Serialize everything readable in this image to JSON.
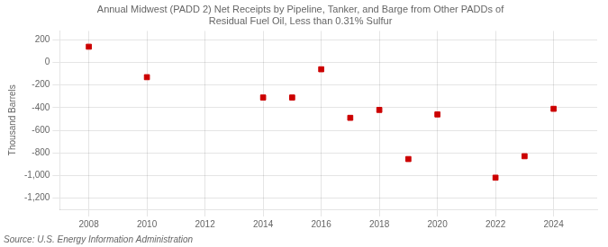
{
  "chart_data": {
    "type": "scatter",
    "title": "Annual Midwest (PADD 2) Net Receipts by Pipeline, Tanker, and Barge from Other PADDs of\nResidual Fuel Oil, Less than 0.31% Sulfur",
    "ylabel": "Thousand Barrels",
    "source": "Source: U.S. Energy Information Administration",
    "x": [
      2008,
      2010,
      2014,
      2015,
      2016,
      2017,
      2018,
      2019,
      2020,
      2022,
      2023,
      2024
    ],
    "values": [
      140,
      -130,
      -310,
      -310,
      -60,
      -490,
      -420,
      -855,
      -460,
      -1020,
      -830,
      -410
    ],
    "color": "#cc0000",
    "marker": "square",
    "xlim": [
      2007,
      2025.5
    ],
    "ylim": [
      -1300,
      280
    ],
    "xticks": [
      2008,
      2010,
      2012,
      2014,
      2016,
      2018,
      2020,
      2022,
      2024
    ],
    "yticks": [
      200,
      0,
      -200,
      -400,
      -600,
      -800,
      {
        "value": -1000,
        "label": "-1,000"
      },
      {
        "value": -1200,
        "label": "-1,200"
      }
    ],
    "grid": true
  }
}
